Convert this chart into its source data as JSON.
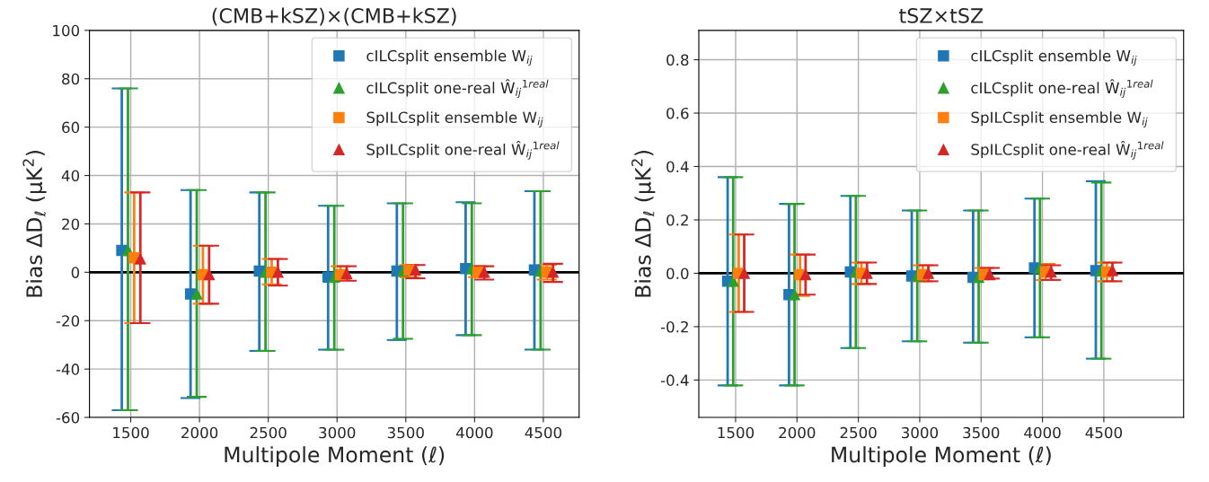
{
  "chart_data": [
    {
      "type": "scatter",
      "title": "(CMB+kSZ)×(CMB+kSZ)",
      "xlabel": "Multipole Moment (ℓ)",
      "ylabel": "Bias ΔD$_{ℓ}$ (μK$^{2}$)",
      "xlim": [
        1200,
        4760
      ],
      "xticks": [
        1500,
        2000,
        2500,
        3000,
        3500,
        4000,
        4500
      ],
      "ylim": [
        -60,
        100
      ],
      "yticks": [
        -60,
        -40,
        -20,
        0,
        20,
        40,
        60,
        80,
        100
      ],
      "grid": true,
      "legend": "top right",
      "ref_lines": [
        {
          "axis": "y",
          "value": 0,
          "color": "#000000"
        }
      ],
      "series": [
        {
          "name": "cILCsplit ensemble W$_{ij}$",
          "color": "#1f77b4",
          "marker": "square",
          "x": [
            1435,
            1935,
            2435,
            2935,
            3435,
            3935,
            4435
          ],
          "values": [
            9,
            -9,
            0.5,
            -2,
            0.5,
            1.5,
            1
          ],
          "errors": [
            [
              -57,
              76
            ],
            [
              -52,
              34
            ],
            [
              -32.5,
              33
            ],
            [
              -32,
              27.5
            ],
            [
              -28,
              28.5
            ],
            [
              -26,
              29
            ],
            [
              -32,
              33.5
            ]
          ]
        },
        {
          "name": "cILCsplit one-real Ŵ$_{ij}$$^{1real}$",
          "color": "#2ca02c",
          "marker": "triangle",
          "x": [
            1480,
            1980,
            2480,
            2980,
            3480,
            3980,
            4480
          ],
          "values": [
            9,
            -9,
            0,
            -2,
            0.5,
            1.5,
            0.5
          ],
          "errors": [
            [
              -57,
              76
            ],
            [
              -51.5,
              34
            ],
            [
              -32.5,
              33
            ],
            [
              -32,
              27.5
            ],
            [
              -27.5,
              28.5
            ],
            [
              -26,
              28.5
            ],
            [
              -32,
              33.5
            ]
          ]
        },
        {
          "name": "SpILCsplit ensemble W$_{ij}$",
          "color": "#ff7f0e",
          "marker": "square",
          "x": [
            1525,
            2025,
            2525,
            3025,
            3525,
            4025,
            4525
          ],
          "values": [
            6,
            -1,
            0,
            -1,
            1,
            0,
            0
          ],
          "errors": [
            [
              -21,
              33
            ],
            [
              -13,
              11
            ],
            [
              -5,
              5.5
            ],
            [
              -3,
              2.5
            ],
            [
              -2,
              3
            ],
            [
              -2,
              2.5
            ],
            [
              -3,
              3
            ]
          ]
        },
        {
          "name": "SpILCsplit one-real Ŵ$_{ij}$$^{1real}$",
          "color": "#d62728",
          "marker": "triangle",
          "x": [
            1570,
            2070,
            2570,
            3070,
            3570,
            4070,
            4570
          ],
          "values": [
            5.5,
            -1,
            0,
            -0.5,
            1,
            0,
            0
          ],
          "errors": [
            [
              -21,
              33
            ],
            [
              -13,
              11
            ],
            [
              -5.5,
              5.5
            ],
            [
              -3.5,
              2.5
            ],
            [
              -2.5,
              3
            ],
            [
              -3,
              2.5
            ],
            [
              -4,
              3.5
            ]
          ]
        }
      ]
    },
    {
      "type": "scatter",
      "title": "tSZ×tSZ",
      "xlabel": "Multipole Moment (ℓ)",
      "ylabel": "Bias ΔD$_{ℓ}$ (μK$^{2}$)",
      "xlim": [
        1200,
        5150
      ],
      "xticks": [
        1500,
        2000,
        2500,
        3000,
        3500,
        4000,
        4500
      ],
      "ylim": [
        -0.54,
        0.91
      ],
      "yticks": [
        -0.4,
        -0.2,
        {
          "value": 0,
          "label": "0.0"
        },
        0.2,
        0.4,
        0.6,
        0.8
      ],
      "grid": true,
      "legend": "top right",
      "ref_lines": [
        {
          "axis": "y",
          "value": 0,
          "color": "#000000"
        }
      ],
      "series": [
        {
          "name": "cILCsplit ensemble W$_{ij}$",
          "color": "#1f77b4",
          "marker": "square",
          "x": [
            1435,
            1935,
            2435,
            2935,
            3435,
            3935,
            4435
          ],
          "values": [
            -0.03,
            -0.08,
            0.005,
            -0.01,
            -0.015,
            0.02,
            0.01
          ],
          "errors": [
            [
              -0.42,
              0.36
            ],
            [
              -0.42,
              0.26
            ],
            [
              -0.28,
              0.29
            ],
            [
              -0.255,
              0.235
            ],
            [
              -0.26,
              0.235
            ],
            [
              -0.24,
              0.28
            ],
            [
              -0.32,
              0.345
            ]
          ]
        },
        {
          "name": "cILCsplit one-real Ŵ$_{ij}$$^{1real}$",
          "color": "#2ca02c",
          "marker": "triangle",
          "x": [
            1480,
            1980,
            2480,
            2980,
            3480,
            3980,
            4480
          ],
          "values": [
            -0.03,
            -0.08,
            0.005,
            -0.01,
            -0.015,
            0.02,
            0.01
          ],
          "errors": [
            [
              -0.42,
              0.36
            ],
            [
              -0.42,
              0.26
            ],
            [
              -0.28,
              0.29
            ],
            [
              -0.255,
              0.235
            ],
            [
              -0.26,
              0.235
            ],
            [
              -0.24,
              0.28
            ],
            [
              -0.32,
              0.34
            ]
          ]
        },
        {
          "name": "SpILCsplit ensemble W$_{ij}$",
          "color": "#ff7f0e",
          "marker": "square",
          "x": [
            1525,
            2025,
            2525,
            3025,
            3525,
            4025,
            4525
          ],
          "values": [
            0.0,
            -0.005,
            0.0,
            -0.005,
            -0.005,
            0.005,
            0.005
          ],
          "errors": [
            [
              -0.145,
              0.145
            ],
            [
              -0.085,
              0.07
            ],
            [
              -0.04,
              0.04
            ],
            [
              -0.03,
              0.03
            ],
            [
              -0.02,
              0.02
            ],
            [
              -0.025,
              0.035
            ],
            [
              -0.03,
              0.04
            ]
          ]
        },
        {
          "name": "SpILCsplit one-real Ŵ$_{ij}$$^{1real}$",
          "color": "#d62728",
          "marker": "triangle",
          "x": [
            1570,
            2070,
            2570,
            3070,
            3570,
            4070,
            4570
          ],
          "values": [
            0.0,
            -0.005,
            0.0,
            0.0,
            -0.005,
            0.005,
            0.01
          ],
          "errors": [
            [
              -0.145,
              0.145
            ],
            [
              -0.08,
              0.07
            ],
            [
              -0.04,
              0.04
            ],
            [
              -0.03,
              0.03
            ],
            [
              -0.02,
              0.02
            ],
            [
              -0.025,
              0.03
            ],
            [
              -0.03,
              0.04
            ]
          ]
        }
      ]
    }
  ]
}
